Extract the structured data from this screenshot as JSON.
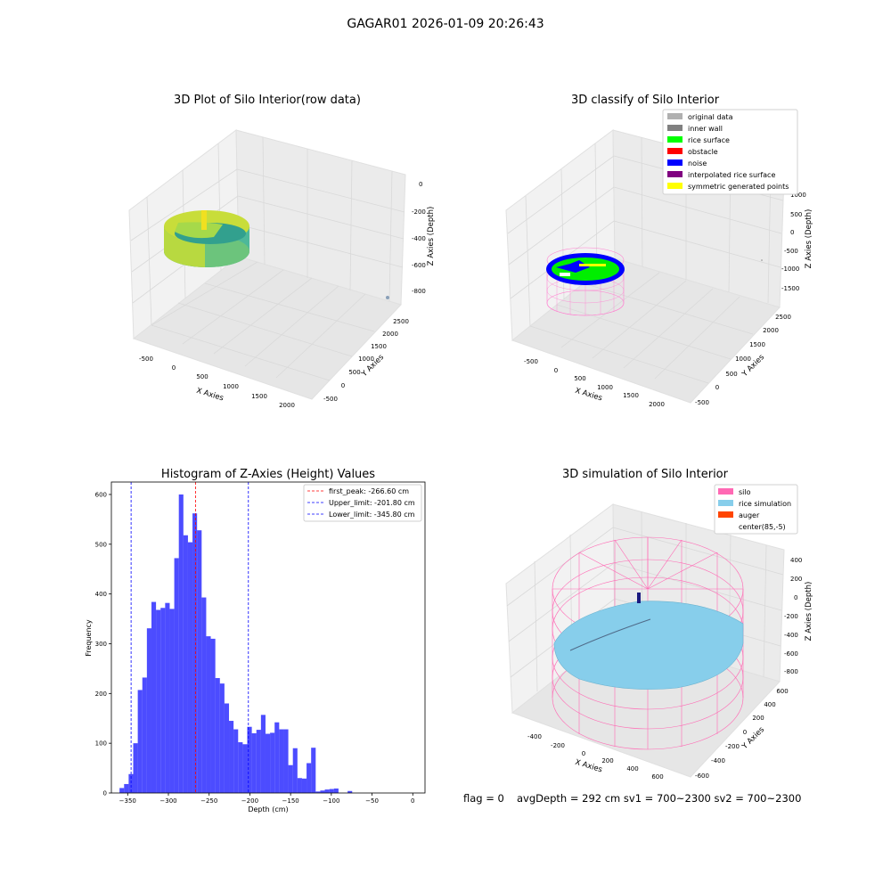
{
  "suptitle": "GAGAR01 2026-01-09 20:26:43",
  "footer": {
    "flag": "flag = 0",
    "avg": "avgDepth = 292 cm  sv1 = 700~2300  sv2 = 700~2300"
  },
  "panels": {
    "raw": {
      "title": "3D Plot of Silo Interior(row data)",
      "xlabel": "X Axies",
      "ylabel": "Y Axies",
      "zlabel": "Z Axies (Depth)",
      "xticks": [
        "-500",
        "0",
        "500",
        "1000",
        "1500",
        "2000"
      ],
      "yticks": [
        "-500",
        "0",
        "500",
        "1000",
        "1500",
        "2000",
        "2500"
      ],
      "zticks": [
        "0",
        "-200",
        "-400",
        "-600",
        "-800"
      ]
    },
    "classify": {
      "title": "3D classify of Silo Interior",
      "xlabel": "X Axies",
      "ylabel": "Y Axies",
      "zlabel": "Z Axies (Depth)",
      "xticks": [
        "-500",
        "0",
        "500",
        "1000",
        "1500",
        "2000"
      ],
      "yticks": [
        "-500",
        "0",
        "500",
        "1000",
        "1500",
        "2000",
        "2500"
      ],
      "zticks": [
        "1000",
        "500",
        "0",
        "-500",
        "-1000",
        "-1500"
      ],
      "legend": [
        {
          "label": "original data",
          "color": "#b0b0b0"
        },
        {
          "label": "inner wall",
          "color": "#808080"
        },
        {
          "label": "rice surface",
          "color": "#00ff00"
        },
        {
          "label": "obstacle",
          "color": "#ff0000"
        },
        {
          "label": "noise",
          "color": "#0000ff"
        },
        {
          "label": "interpolated rice surface",
          "color": "#800080"
        },
        {
          "label": "symmetric generated points",
          "color": "#ffff00"
        }
      ]
    },
    "simulation": {
      "title": "3D simulation of Silo Interior",
      "xlabel": "X Axies",
      "ylabel": "Y Axies",
      "zlabel": "Z Axies (Depth)",
      "xticks": [
        "-400",
        "-200",
        "0",
        "200",
        "400",
        "600"
      ],
      "yticks": [
        "-600",
        "-400",
        "-200",
        "0",
        "200",
        "400",
        "600"
      ],
      "zticks": [
        "400",
        "200",
        "0",
        "-200",
        "-400",
        "-600",
        "-800"
      ],
      "legend": [
        {
          "label": "silo",
          "color": "#ff69b4"
        },
        {
          "label": "rice simulation",
          "color": "#87ceeb"
        },
        {
          "label": "auger",
          "color": "#ff4500"
        },
        {
          "label": "center(85,-5)",
          "color": ""
        }
      ]
    }
  },
  "chart_data": {
    "type": "bar",
    "title": "Histogram of Z-Axies (Height) Values",
    "xlabel": "Depth (cm)",
    "ylabel": "Frequency",
    "xlim": [
      -370,
      15
    ],
    "ylim": [
      0,
      625
    ],
    "xticks": [
      -350,
      -300,
      -250,
      -200,
      -150,
      -100,
      -50,
      0
    ],
    "yticks": [
      0,
      100,
      200,
      300,
      400,
      500,
      600
    ],
    "bin_width": 5.6,
    "bin_start": -360.0,
    "counts": [
      10,
      18,
      38,
      100,
      207,
      232,
      331,
      384,
      368,
      372,
      382,
      370,
      472,
      600,
      518,
      504,
      562,
      528,
      393,
      315,
      310,
      231,
      220,
      180,
      145,
      128,
      102,
      98,
      133,
      120,
      127,
      157,
      119,
      121,
      142,
      128,
      128,
      56,
      90,
      30,
      29,
      60,
      91,
      3,
      5,
      7,
      8,
      9,
      0,
      0,
      4,
      0
    ],
    "color": "#0000ff",
    "lines": [
      {
        "label": "first_peak: -266.60 cm",
        "x": -266.6,
        "color": "#ff0000"
      },
      {
        "label": "Upper_limit: -201.80 cm",
        "x": -201.8,
        "color": "#0000ff"
      },
      {
        "label": "Lower_limit: -345.80 cm",
        "x": -345.8,
        "color": "#0000ff"
      }
    ]
  }
}
